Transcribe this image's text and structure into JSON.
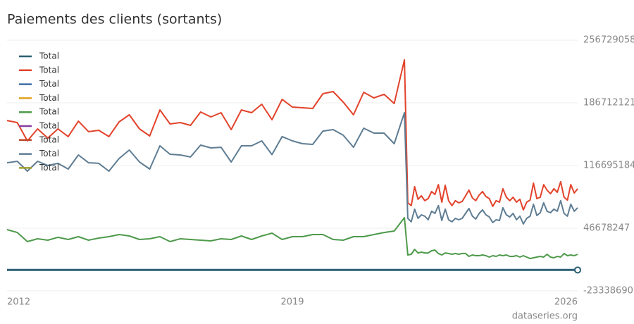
{
  "chart_data": {
    "type": "line",
    "title": "Paiements des clients (sortants)",
    "source": "dataseries.org",
    "x": [
      2012,
      2012.25,
      2012.5,
      2012.75,
      2013,
      2013.25,
      2013.5,
      2013.75,
      2014,
      2014.25,
      2014.5,
      2014.75,
      2015,
      2015.25,
      2015.5,
      2015.75,
      2016,
      2016.25,
      2016.5,
      2016.75,
      2017,
      2017.25,
      2017.5,
      2017.75,
      2018,
      2018.25,
      2018.5,
      2018.75,
      2019,
      2019.25,
      2019.5,
      2019.75,
      2020,
      2020.25,
      2020.5,
      2020.75,
      2021,
      2021.25,
      2021.5,
      2021.75,
      2021.833,
      2021.917,
      2022,
      2022.083,
      2022.167,
      2022.25,
      2022.333,
      2022.417,
      2022.5,
      2022.583,
      2022.667,
      2022.75,
      2022.833,
      2022.917,
      2023,
      2023.083,
      2023.167,
      2023.25,
      2023.333,
      2023.417,
      2023.5,
      2023.583,
      2023.667,
      2023.75,
      2023.833,
      2023.917,
      2024,
      2024.083,
      2024.167,
      2024.25,
      2024.333,
      2024.417,
      2024.5,
      2024.583,
      2024.667,
      2024.75,
      2024.833,
      2024.917,
      2025,
      2025.083,
      2025.167,
      2025.25,
      2025.333,
      2025.417,
      2025.5,
      2025.583,
      2025.667,
      2025.75,
      2025.833,
      2025.917,
      2026
    ],
    "xlim": [
      2012,
      2026
    ],
    "xticks": [
      2012,
      2019,
      2026
    ],
    "ylim": [
      -23338690,
      256729058
    ],
    "yticks": [
      -23338690,
      46678247,
      116695184,
      186712121,
      256729058
    ],
    "grid": true,
    "legend": "top-left",
    "series": [
      {
        "name": "Total",
        "color": "#2c5f73",
        "values": [
          0,
          0,
          0,
          0,
          0,
          0,
          0,
          0,
          0,
          0,
          0,
          0,
          0,
          0,
          0,
          0,
          0,
          0,
          0,
          0,
          0,
          0,
          0,
          0,
          0,
          0,
          0,
          0,
          0,
          0,
          0,
          0,
          0,
          0,
          0,
          0,
          0,
          0,
          0,
          0,
          0,
          0,
          0,
          0,
          0,
          0,
          0,
          0,
          0,
          0,
          0,
          0,
          0,
          0,
          0,
          0,
          0,
          0,
          0,
          0,
          0,
          0,
          0,
          0,
          0,
          0,
          0,
          0,
          0,
          0,
          0,
          0,
          0,
          0,
          0,
          0,
          0,
          0,
          0,
          0,
          0,
          0,
          0,
          0,
          0,
          0,
          0,
          0,
          0,
          0,
          0
        ]
      },
      {
        "name": "Total",
        "color": "#e2432b",
        "values": [
          167000000.0,
          164700000.0,
          144200000.0,
          157600000.0,
          147400000.0,
          157600000.0,
          149000000.0,
          166300000.0,
          154500000.0,
          156000000.0,
          149000000.0,
          165500000.0,
          173300000.0,
          157600000.0,
          149700000.0,
          178800000.0,
          163100000.0,
          164700000.0,
          161500000.0,
          176500000.0,
          171000000.0,
          175700000.0,
          156800000.0,
          178800000.0,
          175700000.0,
          185100000.0,
          167800000.0,
          190600000.0,
          182000000.0,
          181200000.0,
          180400000.0,
          196900000.0,
          199300000.0,
          187500000.0,
          173300000.0,
          198500000.0,
          192200000.0,
          196200000.0,
          185900000.0,
          234700000.0,
          75000000.0,
          71900000.0,
          93100000.0,
          79000000.0,
          82900000.0,
          77400000.0,
          79700000.0,
          87600000.0,
          84400000.0,
          95400000.0,
          75800000.0,
          94700000.0,
          77400000.0,
          71900000.0,
          77400000.0,
          75000000.0,
          76600000.0,
          82900000.0,
          89200000.0,
          80500000.0,
          77400000.0,
          83700000.0,
          87600000.0,
          82100000.0,
          79700000.0,
          71100000.0,
          77400000.0,
          75800000.0,
          90700000.0,
          81300000.0,
          77400000.0,
          81300000.0,
          75800000.0,
          79000000.0,
          67100000.0,
          75800000.0,
          78100000.0,
          97000000.0,
          79700000.0,
          81300000.0,
          95400000.0,
          89200000.0,
          85200000.0,
          90700000.0,
          86800000.0,
          98600000.0,
          81300000.0,
          78100000.0,
          95400000.0,
          86000000.0,
          90700000.0
        ]
      },
      {
        "name": "Total",
        "color": "#3d6fa5",
        "values": [
          null,
          null,
          null,
          null,
          null,
          null,
          null,
          null,
          null,
          null,
          null,
          null,
          null,
          null,
          null,
          null,
          null,
          null,
          null,
          null,
          null,
          null,
          null,
          null,
          null,
          null,
          null,
          null,
          null,
          null,
          null,
          null,
          null,
          null,
          null,
          null,
          null,
          null,
          null,
          null,
          null,
          null,
          null,
          null,
          null,
          null,
          null,
          null,
          null,
          null,
          null,
          null,
          null,
          null,
          null,
          null,
          null,
          null,
          null,
          null,
          null,
          null,
          null,
          null,
          null,
          null,
          null,
          null,
          null,
          null,
          null,
          null,
          null,
          null,
          null,
          null,
          null,
          null,
          null,
          null,
          null,
          null,
          null,
          null,
          null,
          null,
          null,
          null,
          null,
          null,
          null
        ]
      },
      {
        "name": "Total",
        "color": "#e0a21f",
        "values": [
          null,
          null,
          null,
          null,
          null,
          null,
          null,
          null,
          null,
          null,
          null,
          null,
          null,
          null,
          null,
          null,
          null,
          null,
          null,
          null,
          null,
          null,
          null,
          null,
          null,
          null,
          null,
          null,
          null,
          null,
          null,
          null,
          null,
          null,
          null,
          null,
          null,
          null,
          null,
          null,
          null,
          null,
          null,
          null,
          null,
          null,
          null,
          null,
          null,
          null,
          null,
          null,
          null,
          null,
          null,
          null,
          null,
          null,
          null,
          null,
          null,
          null,
          null,
          null,
          null,
          null,
          null,
          null,
          null,
          null,
          null,
          null,
          null,
          null,
          null,
          null,
          null,
          null,
          null,
          null,
          null,
          null,
          null,
          null,
          null,
          null,
          null,
          null,
          null,
          null,
          null
        ]
      },
      {
        "name": "Total",
        "color": "#4e9a4b",
        "values": [
          45100000.0,
          41900000.0,
          31700000.0,
          34900000.0,
          33300000.0,
          36500000.0,
          34100000.0,
          37200000.0,
          33300000.0,
          35700000.0,
          37200000.0,
          39600000.0,
          38000000.0,
          34100000.0,
          34900000.0,
          37200000.0,
          31700000.0,
          34900000.0,
          34100000.0,
          33300000.0,
          32500000.0,
          34900000.0,
          34100000.0,
          38000000.0,
          34100000.0,
          38000000.0,
          41200000.0,
          34100000.0,
          37200000.0,
          37200000.0,
          39600000.0,
          39600000.0,
          34100000.0,
          33300000.0,
          37200000.0,
          37200000.0,
          39600000.0,
          41900000.0,
          43500000.0,
          58500000.0,
          16800000.0,
          17600000.0,
          23100000.0,
          19100000.0,
          19900000.0,
          19100000.0,
          19100000.0,
          21500000.0,
          22300000.0,
          18400000.0,
          16800000.0,
          19100000.0,
          18400000.0,
          17600000.0,
          18400000.0,
          17600000.0,
          18400000.0,
          18400000.0,
          15200000.0,
          16800000.0,
          16000000.0,
          16000000.0,
          16800000.0,
          16000000.0,
          14400000.0,
          16000000.0,
          15200000.0,
          16800000.0,
          16000000.0,
          16800000.0,
          15200000.0,
          15200000.0,
          16000000.0,
          14400000.0,
          16000000.0,
          14400000.0,
          12800000.0,
          13600000.0,
          14400000.0,
          15200000.0,
          14400000.0,
          17600000.0,
          14400000.0,
          13600000.0,
          15200000.0,
          14400000.0,
          18400000.0,
          16000000.0,
          16800000.0,
          16000000.0,
          17600000.0
        ]
      },
      {
        "name": "Total",
        "color": "#8a3ea0",
        "values": [
          null,
          null,
          null,
          null,
          null,
          null,
          null,
          null,
          null,
          null,
          null,
          null,
          null,
          null,
          null,
          null,
          null,
          null,
          null,
          null,
          null,
          null,
          null,
          null,
          null,
          null,
          null,
          null,
          null,
          null,
          null,
          null,
          null,
          null,
          null,
          null,
          null,
          null,
          null,
          null,
          null,
          null,
          null,
          null,
          null,
          null,
          null,
          null,
          null,
          null,
          null,
          null,
          null,
          null,
          null,
          null,
          null,
          null,
          null,
          null,
          null,
          null,
          null,
          null,
          null,
          null,
          null,
          null,
          null,
          null,
          null,
          null,
          null,
          null,
          null,
          null,
          null,
          null,
          null,
          null,
          null,
          null,
          null,
          null,
          null,
          null,
          null,
          null,
          null,
          null,
          null
        ]
      },
      {
        "name": "Total",
        "color": "#c04a2c",
        "values": [
          null,
          null,
          null,
          null,
          null,
          null,
          null,
          null,
          null,
          null,
          null,
          null,
          null,
          null,
          null,
          null,
          null,
          null,
          null,
          null,
          null,
          null,
          null,
          null,
          null,
          null,
          null,
          null,
          null,
          null,
          null,
          null,
          null,
          null,
          null,
          null,
          null,
          null,
          null,
          null,
          null,
          null,
          null,
          null,
          null,
          null,
          null,
          null,
          null,
          null,
          null,
          null,
          null,
          null,
          null,
          null,
          null,
          null,
          null,
          null,
          null,
          null,
          null,
          null,
          null,
          null,
          null,
          null,
          null,
          null,
          null,
          null,
          null,
          null,
          null,
          null,
          null,
          null,
          null,
          null,
          null,
          null,
          null,
          null,
          null,
          null,
          null,
          null,
          null,
          null,
          null
        ]
      },
      {
        "name": "Total",
        "color": "#5f7d93",
        "values": [
          119800000.0,
          121400000.0,
          110400000.0,
          121400000.0,
          116700000.0,
          119100000.0,
          112800000.0,
          128500000.0,
          119800000.0,
          119100000.0,
          110400000.0,
          124600000.0,
          134000000.0,
          120600000.0,
          112800000.0,
          138700000.0,
          129300000.0,
          128500000.0,
          126200000.0,
          139500000.0,
          136400000.0,
          137100000.0,
          120600000.0,
          138700000.0,
          138700000.0,
          144200000.0,
          128900000.0,
          149000000.0,
          144200000.0,
          141100000.0,
          140300000.0,
          155200000.0,
          156800000.0,
          150500000.0,
          137100000.0,
          158400000.0,
          152900000.0,
          152900000.0,
          141100000.0,
          175700000.0,
          57700000.0,
          53800000.0,
          67900000.0,
          57700000.0,
          61600000.0,
          60100000.0,
          56100000.0,
          65600000.0,
          63200000.0,
          71900000.0,
          55300000.0,
          67900000.0,
          56100000.0,
          53800000.0,
          57700000.0,
          56100000.0,
          57700000.0,
          63200000.0,
          68700000.0,
          60100000.0,
          56900000.0,
          63200000.0,
          67100000.0,
          61600000.0,
          59300000.0,
          53000000.0,
          56100000.0,
          55300000.0,
          69500000.0,
          61600000.0,
          59300000.0,
          63200000.0,
          56100000.0,
          60100000.0,
          51400000.0,
          57700000.0,
          60100000.0,
          73400000.0,
          60800000.0,
          64000000.0,
          75000000.0,
          65600000.0,
          64000000.0,
          67900000.0,
          65600000.0,
          77400000.0,
          63200000.0,
          60100000.0,
          73400000.0,
          65600000.0,
          69500000.0
        ]
      },
      {
        "name": "Total",
        "color": "#a0a030",
        "values": [
          null,
          null,
          null,
          null,
          null,
          null,
          null,
          null,
          null,
          null,
          null,
          null,
          null,
          null,
          null,
          null,
          null,
          null,
          null,
          null,
          null,
          null,
          null,
          null,
          null,
          null,
          null,
          null,
          null,
          null,
          null,
          null,
          null,
          null,
          null,
          null,
          null,
          null,
          null,
          null,
          null,
          null,
          null,
          null,
          null,
          null,
          null,
          null,
          null,
          null,
          null,
          null,
          null,
          null,
          null,
          null,
          null,
          null,
          null,
          null,
          null,
          null,
          null,
          null,
          null,
          null,
          null,
          null,
          null,
          null,
          null,
          null,
          null,
          null,
          null,
          null,
          null,
          null,
          null,
          null,
          null,
          null,
          null,
          null,
          null,
          null,
          null,
          null,
          null,
          null,
          null
        ]
      }
    ]
  }
}
